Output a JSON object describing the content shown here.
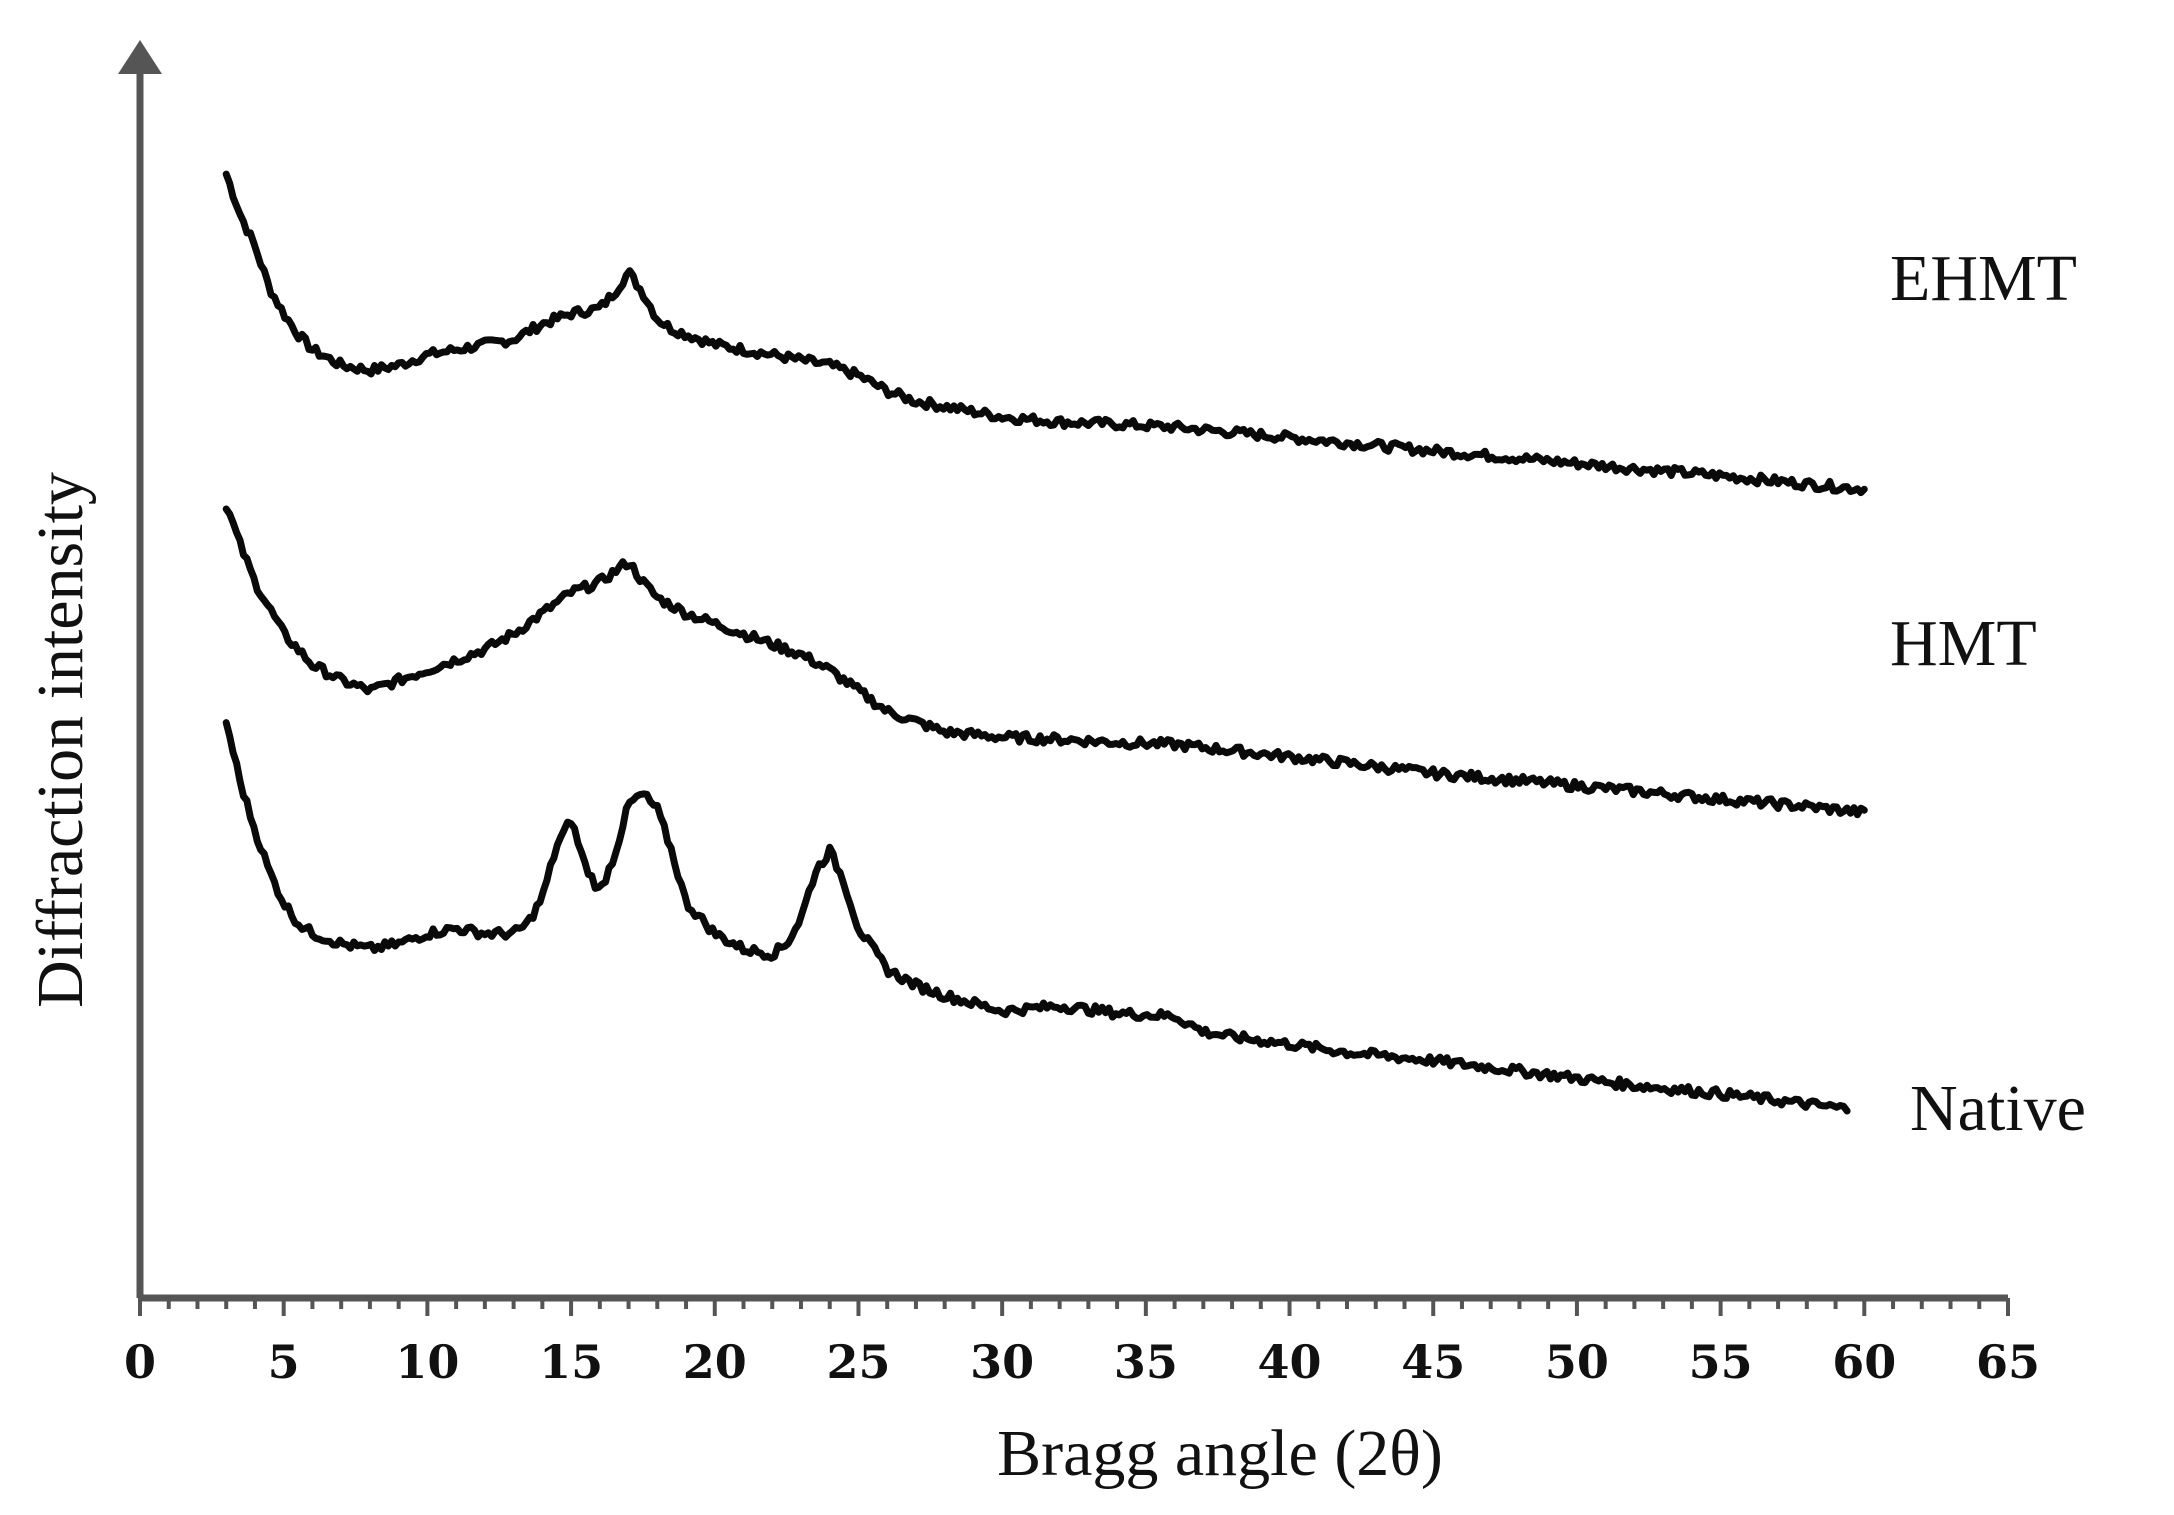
{
  "chart_data": {
    "type": "line",
    "title": "",
    "xlabel": "Bragg angle (2θ)",
    "ylabel": "Diffraction intensity",
    "xlim": [
      0,
      65
    ],
    "xticks": [
      0,
      5,
      10,
      15,
      20,
      25,
      30,
      35,
      40,
      45,
      50,
      55,
      60,
      65
    ],
    "yaxis_arrow": true,
    "y_values_are_relative": true,
    "series": [
      {
        "name": "EHMT",
        "color": "#0a0a0a",
        "x": [
          3,
          3.5,
          4,
          4.5,
          5,
          5.5,
          6,
          7,
          8,
          9,
          10,
          11,
          12,
          13,
          14,
          15,
          16,
          16.5,
          17,
          17.5,
          18,
          18.5,
          19,
          20,
          21,
          22,
          23,
          24,
          25,
          26,
          27,
          28,
          30,
          32,
          34,
          36,
          38,
          40,
          42,
          45,
          48,
          50,
          52,
          55,
          58,
          60
        ],
        "values": [
          9.3,
          8.9,
          8.6,
          8.2,
          7.95,
          7.75,
          7.6,
          7.45,
          7.4,
          7.45,
          7.55,
          7.6,
          7.65,
          7.7,
          7.85,
          7.95,
          8.0,
          8.15,
          8.35,
          8.15,
          7.9,
          7.8,
          7.75,
          7.65,
          7.6,
          7.55,
          7.5,
          7.45,
          7.35,
          7.2,
          7.1,
          7.05,
          6.95,
          6.9,
          6.88,
          6.85,
          6.8,
          6.75,
          6.7,
          6.62,
          6.55,
          6.5,
          6.45,
          6.38,
          6.3,
          6.25
        ]
      },
      {
        "name": "HMT",
        "color": "#0a0a0a",
        "x": [
          3,
          3.5,
          4,
          4.5,
          5,
          5.5,
          6,
          7,
          8,
          9,
          10,
          11,
          12,
          13,
          14,
          15,
          16,
          16.5,
          17,
          17.5,
          18,
          19,
          20,
          21,
          22,
          23,
          24,
          25,
          26,
          27,
          28,
          30,
          32,
          34,
          36,
          38,
          40,
          42,
          45,
          48,
          50,
          52,
          55,
          58,
          60
        ],
        "values": [
          6.1,
          5.7,
          5.35,
          5.1,
          4.85,
          4.7,
          4.55,
          4.4,
          4.3,
          4.4,
          4.5,
          4.6,
          4.7,
          4.85,
          5.05,
          5.25,
          5.35,
          5.45,
          5.55,
          5.35,
          5.2,
          5.05,
          4.95,
          4.85,
          4.75,
          4.65,
          4.5,
          4.3,
          4.1,
          4.0,
          3.9,
          3.85,
          3.83,
          3.8,
          3.78,
          3.72,
          3.66,
          3.6,
          3.5,
          3.43,
          3.38,
          3.33,
          3.25,
          3.18,
          3.12
        ]
      },
      {
        "name": "Native",
        "color": "#0a0a0a",
        "x": [
          3,
          3.5,
          4,
          4.5,
          5,
          5.5,
          6,
          7,
          8,
          9,
          10,
          11,
          12,
          13,
          13.5,
          14,
          14.5,
          15,
          15.5,
          16,
          16.5,
          17,
          17.5,
          18,
          18.5,
          19,
          20,
          21,
          22,
          22.5,
          23,
          23.5,
          24,
          24.5,
          25,
          26,
          27,
          28,
          30,
          32,
          34,
          36,
          37,
          38,
          40,
          42,
          45,
          48,
          50,
          52,
          55,
          58,
          59.5
        ],
        "values": [
          4.0,
          3.4,
          2.95,
          2.55,
          2.25,
          2.05,
          1.95,
          1.85,
          1.8,
          1.85,
          1.95,
          2.0,
          1.95,
          1.95,
          2.05,
          2.3,
          2.8,
          3.05,
          2.6,
          2.35,
          2.7,
          3.2,
          3.3,
          3.15,
          2.75,
          2.25,
          1.95,
          1.8,
          1.75,
          1.85,
          2.1,
          2.55,
          2.75,
          2.45,
          2.0,
          1.6,
          1.45,
          1.35,
          1.2,
          1.25,
          1.18,
          1.15,
          1.0,
          0.95,
          0.88,
          0.8,
          0.72,
          0.62,
          0.55,
          0.48,
          0.4,
          0.3,
          0.25
        ]
      }
    ],
    "ylim": [
      -1.5,
      10.5
    ]
  }
}
